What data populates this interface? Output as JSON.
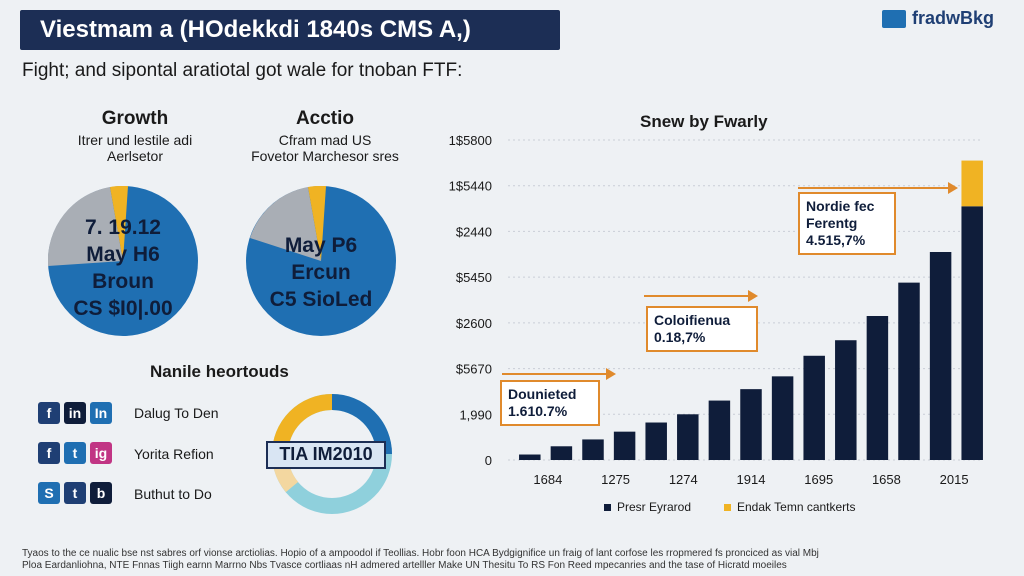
{
  "header": {
    "title": "Viestmam a (HOdekkdi 1840s CMS A,)",
    "brand": "fradwBkg",
    "subtitle": "Fight; and sipontal aratiotal got wale for tnoban FTF:"
  },
  "left_panels": [
    {
      "title": "Growth",
      "sub1": "Itrer und lestile adi",
      "sub2": "Aerlsetor",
      "lines": [
        "7. 19.12",
        "May H6",
        "Broun",
        "CS $I0|.00"
      ]
    },
    {
      "title": "Acctio",
      "sub1": "Cfram mad US",
      "sub2": "Fovetor Marchesor sres",
      "lines": [
        "May P6",
        "Ercun",
        "C5 SioLed"
      ]
    }
  ],
  "social": {
    "heading": "Nanile heortouds",
    "rows": [
      {
        "icons": [
          "f",
          "in",
          "In"
        ],
        "label": "Dalug To Den"
      },
      {
        "icons": [
          "f",
          "t",
          "ig"
        ],
        "label": "Yorita Refion"
      },
      {
        "icons": [
          "S",
          "t",
          "b"
        ],
        "label": "Buthut to Do"
      }
    ],
    "badge": "TIA IM2010"
  },
  "chart_data": {
    "type": "bar",
    "title": "Snew by Fwarly",
    "y_tick_labels": [
      "0",
      "1,990",
      "$5670",
      "$2600",
      "$5450",
      "$2440",
      "1$5440",
      "1$5800"
    ],
    "x_tick_labels": [
      "1684",
      "1275",
      "1274",
      "1914",
      "1695",
      "1658",
      "2015"
    ],
    "y_units_max": 7,
    "series": [
      {
        "name": "Presr Eyrarod",
        "values": [
          0.12,
          0.3,
          0.45,
          0.62,
          0.82,
          1.0,
          1.3,
          1.55,
          1.83,
          2.28,
          2.62,
          3.15,
          3.88,
          4.55,
          5.55
        ]
      },
      {
        "name": "Endak Temn cantkerts",
        "values": [
          0,
          0,
          0,
          0,
          0,
          0,
          0,
          0,
          0,
          0,
          0,
          0,
          0,
          0,
          1.0
        ]
      }
    ],
    "annotations": [
      {
        "l1": "Dounieted",
        "l2": "1.610.7%"
      },
      {
        "l1": "Coloifienua",
        "l2": "0.18,7%"
      },
      {
        "l1": "Nordie fec",
        "l2": "Ferentg",
        "l3": "4.515,7%"
      }
    ]
  },
  "footer": {
    "line1": "Tyaos to the ce nualic bse nst sabres orf vionse arctiolias. Hopio of a ampoodol if Teollias. Hobr foon HCA Bydgignifice un fraig of lant corfose les rropmered fs pronciced as vial Mbj",
    "line2": "Ploa Eardanliohna, NTE Fnnas Tiigh earnn Marrno Nbs Tvasce cortliaas nH admered artelller Make UN Thesitu To RS Fon Reed mpecanries and the tase of Hicratd moeiles"
  },
  "colors": {
    "navy": "#0f1d3a",
    "blue": "#1f6fb2",
    "gold": "#f0b323",
    "orange": "#e08a2c",
    "grey": "#a9aeb5"
  }
}
